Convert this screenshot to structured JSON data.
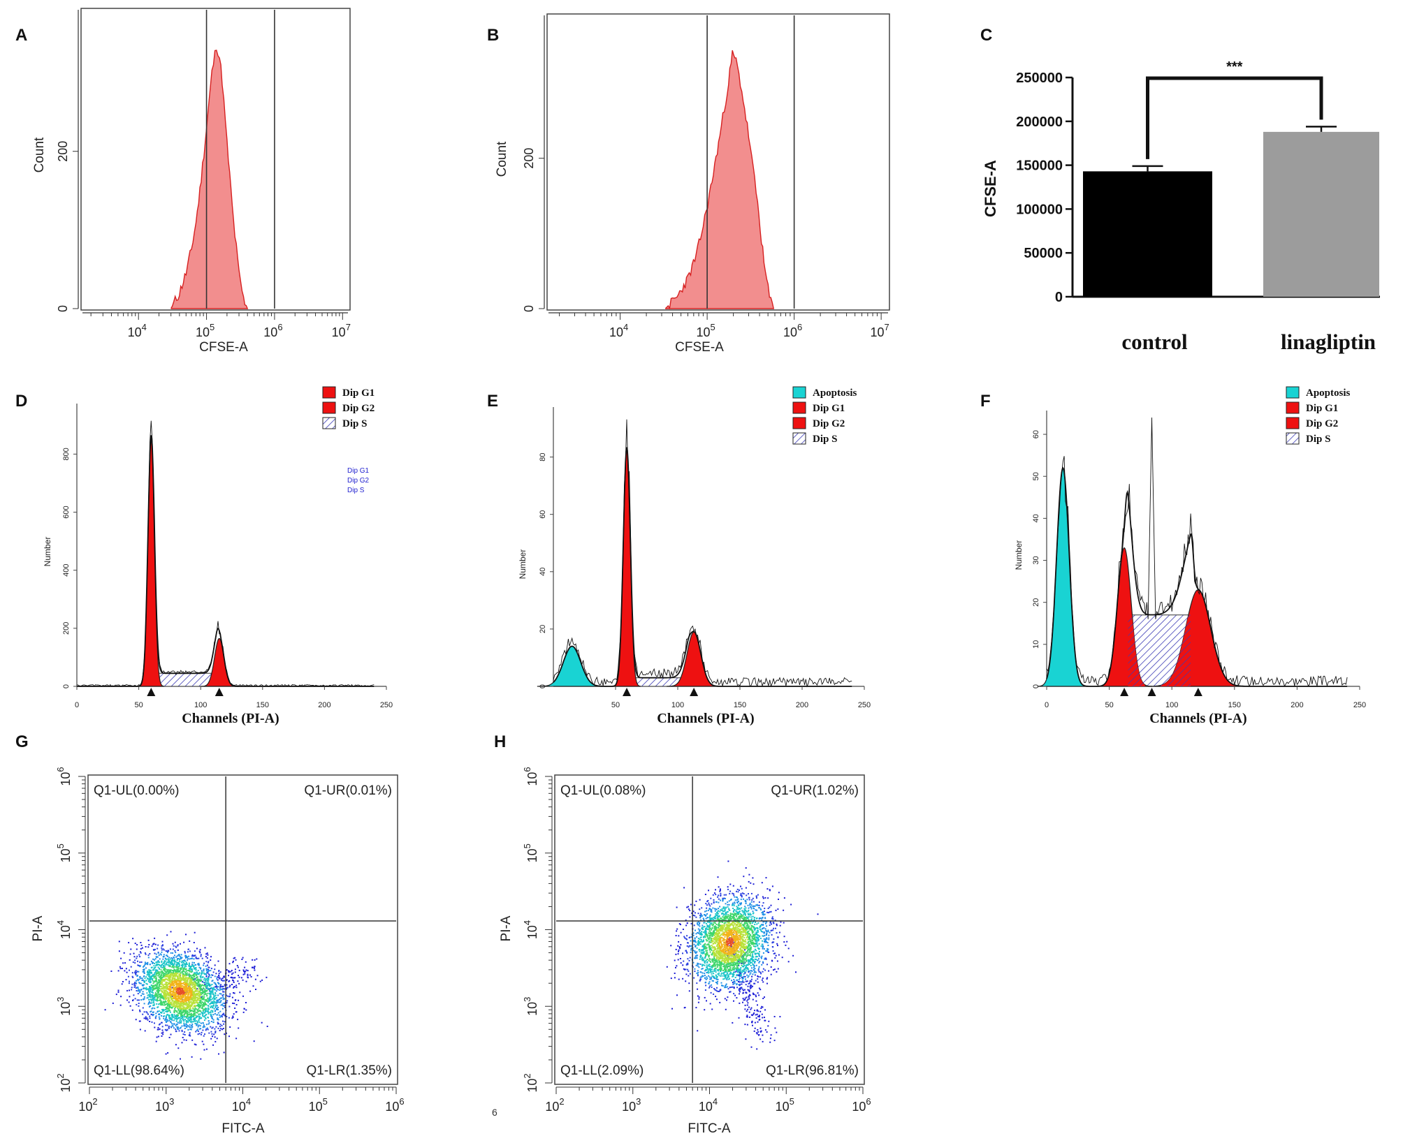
{
  "colors": {
    "cfse_fill": "#f28e8e",
    "cfse_stroke": "#d62020",
    "dip": "#ee1111",
    "apoptosis": "#19d3d3",
    "hatch": "#3b3bb5",
    "bar_control": "#000000",
    "bar_lina": "#9c9c9c"
  },
  "chart_data": [
    {
      "panel": "A",
      "type": "area",
      "xlabel": "CFSE-A",
      "ylabel": "Count",
      "x_scale": "log",
      "xlim": [
        1500,
        12000000
      ],
      "ylim": [
        0,
        380
      ],
      "xticks": [
        "10",
        "10",
        "10",
        "10"
      ],
      "xtick_exps": [
        "4",
        "5",
        "6",
        "7"
      ],
      "yticks": [
        "0",
        "200"
      ],
      "gates": [
        100000,
        1000000
      ],
      "x": [
        30000,
        40000,
        50000,
        60000,
        70000,
        80000,
        100000,
        120000,
        140000,
        155000,
        170000,
        200000,
        250000,
        300000,
        350000,
        400000
      ],
      "y": [
        0,
        20,
        45,
        75,
        110,
        150,
        230,
        300,
        335,
        320,
        290,
        210,
        110,
        45,
        12,
        0
      ]
    },
    {
      "panel": "B",
      "type": "area",
      "xlabel": "CFSE-A",
      "ylabel": "Count",
      "x_scale": "log",
      "xlim": [
        1500,
        12000000
      ],
      "ylim": [
        0,
        390
      ],
      "xticks": [
        "10",
        "10",
        "10",
        "10"
      ],
      "xtick_exps": [
        "4",
        "5",
        "6",
        "7"
      ],
      "yticks": [
        "0",
        "200"
      ],
      "gates": [
        100000,
        1000000
      ],
      "x": [
        33000,
        45000,
        60000,
        75000,
        90000,
        110000,
        140000,
        170000,
        195000,
        215000,
        250000,
        300000,
        380000,
        450000,
        520000,
        580000
      ],
      "y": [
        0,
        15,
        40,
        70,
        110,
        160,
        230,
        290,
        338,
        330,
        290,
        230,
        140,
        60,
        15,
        0
      ]
    },
    {
      "panel": "C",
      "type": "bar",
      "categories": [
        "control",
        "linagliptin"
      ],
      "values": [
        143000,
        188000
      ],
      "errors": [
        6000,
        6000
      ],
      "ylabel": "CFSE-A",
      "ylim": [
        0,
        250000
      ],
      "yticks": [
        "0",
        "50000",
        "100000",
        "150000",
        "200000",
        "250000"
      ],
      "annotation": "***"
    },
    {
      "panel": "D",
      "type": "line",
      "xlabel": "Channels (PI-A)",
      "ylabel": "Number",
      "xlim": [
        0,
        250
      ],
      "ylim": [
        0,
        950
      ],
      "xticks": [
        "0",
        "50",
        "100",
        "150",
        "200",
        "250"
      ],
      "yticks": [
        "0",
        "200",
        "400",
        "600",
        "800"
      ],
      "legend": [
        "Dip G1",
        "Dip G2",
        "Dip S"
      ],
      "legend_note": [
        "Dip G1",
        "Dip G2",
        "Dip S"
      ],
      "components": [
        {
          "name": "Dip G1",
          "mean": 60,
          "sd": 2.6,
          "height": 850
        },
        {
          "name": "Dip G2",
          "mean": 115,
          "sd": 3.8,
          "height": 165
        },
        {
          "name": "Dip S",
          "from": 63,
          "to": 113,
          "height": 45
        }
      ],
      "markers": [
        60,
        115
      ]
    },
    {
      "panel": "E",
      "type": "line",
      "xlabel": "Channels (PI-A)",
      "ylabel": "Number",
      "xlim": [
        0,
        250
      ],
      "ylim": [
        0,
        95
      ],
      "xticks": [
        "50",
        "100",
        "150",
        "200",
        "250"
      ],
      "yticks": [
        "0",
        "20",
        "40",
        "60",
        "80"
      ],
      "legend": [
        "Apoptosis",
        "Dip G1",
        "Dip G2",
        "Dip S"
      ],
      "components": [
        {
          "name": "Apoptosis",
          "mean": 15,
          "sd": 7,
          "height": 14
        },
        {
          "name": "Dip G1",
          "mean": 59,
          "sd": 2.8,
          "height": 83
        },
        {
          "name": "Dip G2",
          "mean": 113,
          "sd": 5.5,
          "height": 19
        },
        {
          "name": "Dip S",
          "from": 63,
          "to": 108,
          "height": 3
        }
      ],
      "markers": [
        59,
        113
      ]
    },
    {
      "panel": "F",
      "type": "line",
      "xlabel": "Channels (PI-A)",
      "ylabel": "Number",
      "xlim": [
        0,
        250
      ],
      "ylim": [
        0,
        64
      ],
      "xticks": [
        "0",
        "50",
        "100",
        "150",
        "200",
        "250"
      ],
      "yticks": [
        "0",
        "10",
        "20",
        "30",
        "40",
        "50",
        "60"
      ],
      "legend": [
        "Apoptosis",
        "Dip G1",
        "Dip G2",
        "Dip S"
      ],
      "components": [
        {
          "name": "Apoptosis",
          "mean": 13,
          "sd": 5,
          "height": 52
        },
        {
          "name": "Dip G1",
          "mean": 62,
          "sd": 5.5,
          "height": 33
        },
        {
          "name": "Dip G2",
          "mean": 121,
          "sd": 10,
          "height": 23
        },
        {
          "name": "Dip S",
          "from": 65,
          "to": 115,
          "height": 17
        }
      ],
      "markers": [
        62,
        84,
        121
      ]
    },
    {
      "panel": "G",
      "type": "scatter",
      "xlabel": "FITC-A",
      "ylabel": "PI-A",
      "x_scale": "log",
      "y_scale": "log",
      "xlim": [
        100,
        1000000
      ],
      "ylim": [
        100,
        1000000
      ],
      "xticks": [
        "10",
        "10",
        "10",
        "10",
        "10"
      ],
      "xtick_exps": [
        "2",
        "3",
        "4",
        "5",
        "6"
      ],
      "yticks": [
        "10",
        "10",
        "10",
        "10",
        "10"
      ],
      "ytick_exps": [
        "2",
        "3",
        "4",
        "5",
        "6"
      ],
      "gate_x": 6000,
      "gate_y": 13000,
      "quadrants": {
        "UL": "Q1-UL(0.00%)",
        "UR": "Q1-UR(0.01%)",
        "LL": "Q1-LL(98.64%)",
        "LR": "Q1-LR(1.35%)"
      },
      "cluster_center": [
        1500,
        1600
      ]
    },
    {
      "panel": "H",
      "type": "scatter",
      "xlabel": "FITC-A",
      "ylabel": "PI-A",
      "x_scale": "log",
      "y_scale": "log",
      "xlim": [
        100,
        1000000
      ],
      "ylim": [
        100,
        1000000
      ],
      "xticks": [
        "10",
        "10",
        "10",
        "10",
        "10"
      ],
      "xtick_exps": [
        "2",
        "3",
        "4",
        "5",
        "6"
      ],
      "yticks": [
        "10",
        "10",
        "10",
        "10",
        "10"
      ],
      "ytick_exps": [
        "2",
        "3",
        "4",
        "5",
        "6"
      ],
      "gate_x": 6000,
      "gate_y": 13000,
      "quadrants": {
        "UL": "Q1-UL(0.08%)",
        "UR": "Q1-UR(1.02%)",
        "LL": "Q1-LL(2.09%)",
        "LR": "Q1-LR(96.81%)"
      },
      "cluster_center": [
        18000,
        7000
      ],
      "stray_label": "6"
    }
  ]
}
